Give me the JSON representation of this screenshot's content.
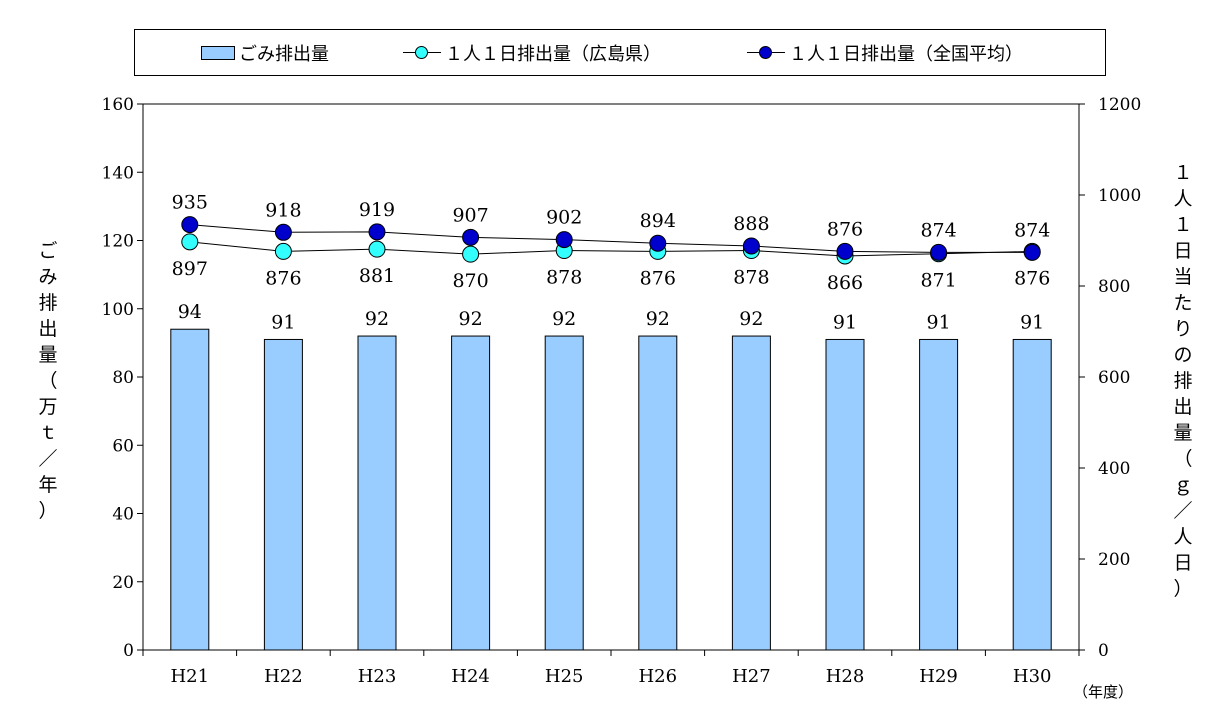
{
  "legend": {
    "bar_label": "ごみ排出量",
    "hiroshima_label": "１人１日排出量（広島県）",
    "national_label": "１人１日排出量（全国平均）"
  },
  "left_axis_title": "ごみ排出量（万ｔ／年）",
  "right_axis_title": "１人１日当たりの排出量（ｇ／人日）",
  "x_unit": "（年度）",
  "colors": {
    "bar": "#99ccff",
    "hiroshima": "#33ffff",
    "national": "#0000cc"
  },
  "chart_data": {
    "type": "bar",
    "categories": [
      "H21",
      "H22",
      "H23",
      "H24",
      "H25",
      "H26",
      "H27",
      "H28",
      "H29",
      "H30"
    ],
    "series": [
      {
        "name": "ごみ排出量",
        "type": "bar",
        "axis": "left",
        "values": [
          94,
          91,
          92,
          92,
          92,
          92,
          92,
          91,
          91,
          91
        ]
      },
      {
        "name": "１人１日排出量（広島県）",
        "type": "line",
        "axis": "right",
        "values": [
          897,
          876,
          881,
          870,
          878,
          876,
          878,
          866,
          871,
          876
        ]
      },
      {
        "name": "１人１日排出量（全国平均）",
        "type": "line",
        "axis": "right",
        "values": [
          935,
          918,
          919,
          907,
          902,
          894,
          888,
          876,
          874,
          874
        ]
      }
    ],
    "left_ylim": [
      0,
      160
    ],
    "left_ticks": [
      0,
      20,
      40,
      60,
      80,
      100,
      120,
      140,
      160
    ],
    "right_ylim": [
      0,
      1200
    ],
    "right_ticks": [
      0,
      200,
      400,
      600,
      800,
      1000,
      1200
    ],
    "ylabel": "ごみ排出量（万ｔ／年）",
    "y2label": "１人１日当たりの排出量（ｇ／人日）",
    "grid": false,
    "legend_position": "top"
  }
}
